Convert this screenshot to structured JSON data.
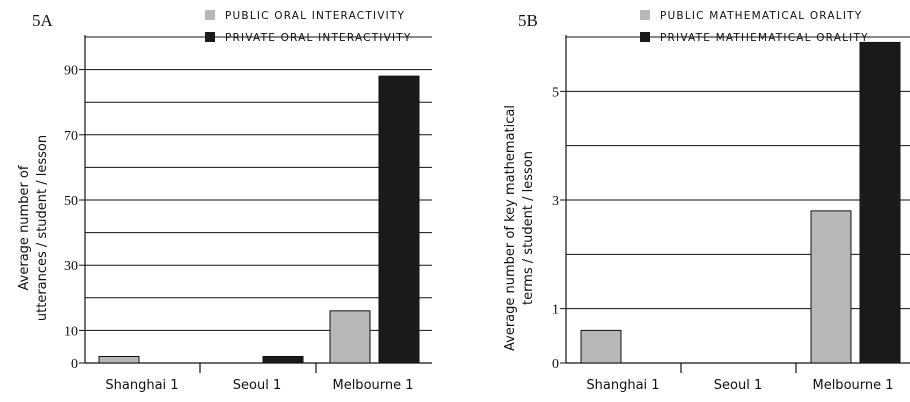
{
  "chart_data": [
    {
      "type": "bar",
      "panel_label": "5A",
      "categories": [
        "Shanghai 1",
        "Seoul 1",
        "Melbourne 1"
      ],
      "series": [
        {
          "name": "PUBLIC ORAL INTERACTIVITY",
          "color": "#b7b7b7",
          "values": [
            2,
            0,
            16
          ]
        },
        {
          "name": "PRIVATE ORAL INTERACTIVITY",
          "color": "#1a1a1a",
          "values": [
            0,
            2,
            88
          ]
        }
      ],
      "ylabel_lines": [
        "Average number of",
        "utterances / student / lesson"
      ],
      "yticks": [
        0,
        10,
        30,
        50,
        70,
        90
      ],
      "ylim": [
        0,
        100
      ],
      "gridlines": [
        10,
        20,
        30,
        40,
        50,
        60,
        70,
        80,
        90,
        100
      ],
      "legend_position": "top-right"
    },
    {
      "type": "bar",
      "panel_label": "5B",
      "categories": [
        "Shanghai 1",
        "Seoul 1",
        "Melbourne 1"
      ],
      "series": [
        {
          "name": "PUBLIC MATHEMATICAL ORALITY",
          "color": "#b7b7b7",
          "values": [
            0.6,
            0,
            2.8
          ]
        },
        {
          "name": "PRIVATE MATHEMATICAL ORALITY",
          "color": "#1a1a1a",
          "values": [
            0,
            0,
            5.9
          ]
        }
      ],
      "ylabel_lines": [
        "Average number of key mathematical",
        "terms / student / lesson"
      ],
      "yticks": [
        0,
        1,
        3,
        5
      ],
      "ylim": [
        0,
        6
      ],
      "gridlines": [
        1,
        2,
        3,
        4,
        5,
        6
      ],
      "legend_position": "top-right"
    }
  ]
}
